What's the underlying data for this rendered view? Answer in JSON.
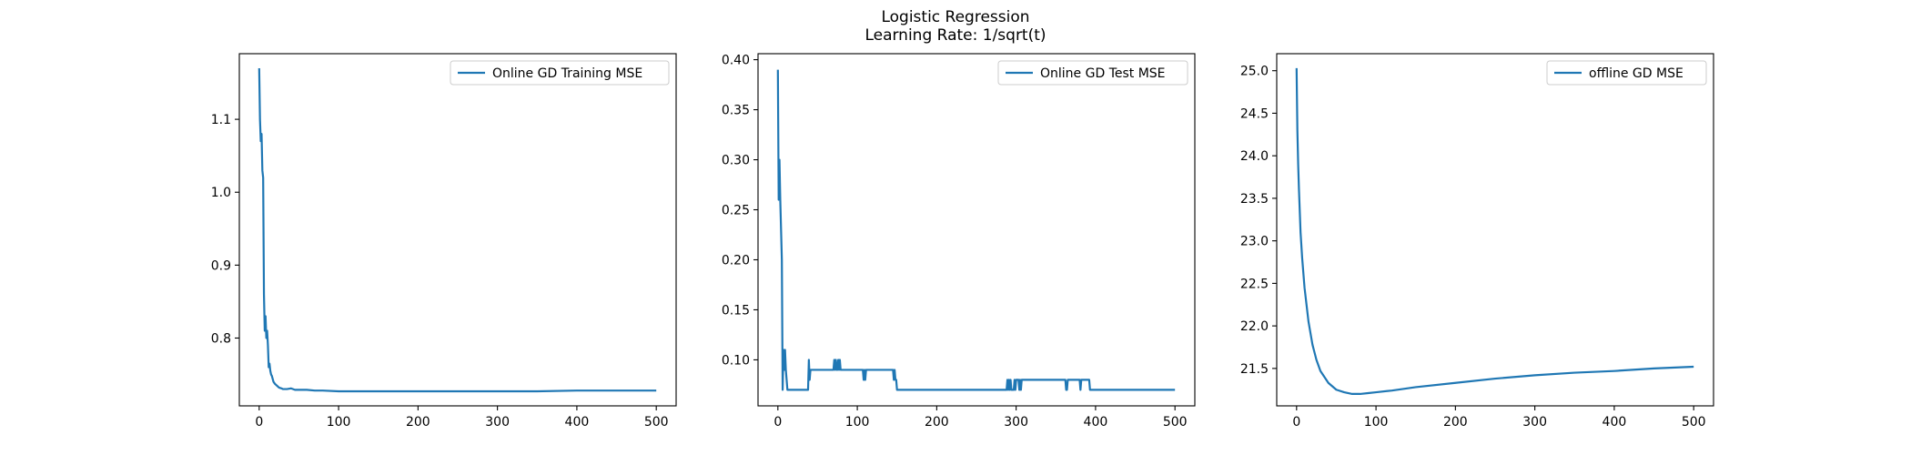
{
  "figure": {
    "title_lines": [
      "Logistic Regression",
      "Learning Rate: 1/sqrt(t)"
    ]
  },
  "chart_data": [
    {
      "type": "line",
      "title": "",
      "xlabel": "",
      "ylabel": "",
      "xlim": [
        -25,
        525
      ],
      "ylim": [
        0.707,
        1.19
      ],
      "xticks": [
        0,
        100,
        200,
        300,
        400,
        500
      ],
      "yticks": [
        0.8,
        0.9,
        1.0,
        1.1
      ],
      "ytick_labels": [
        "0.8",
        "0.9",
        "1.0",
        "1.1"
      ],
      "grid": false,
      "legend": "top-right",
      "series": [
        {
          "name": "Online GD Training MSE",
          "color": "#1f77b4",
          "x": [
            0,
            1,
            2,
            3,
            4,
            5,
            6,
            7,
            8,
            9,
            10,
            11,
            12,
            13,
            14,
            15,
            16,
            18,
            20,
            22,
            25,
            28,
            30,
            35,
            40,
            45,
            50,
            60,
            70,
            80,
            100,
            120,
            150,
            200,
            250,
            300,
            350,
            400,
            450,
            500
          ],
          "y": [
            1.17,
            1.1,
            1.07,
            1.08,
            1.03,
            1.02,
            0.86,
            0.81,
            0.83,
            0.8,
            0.81,
            0.79,
            0.76,
            0.765,
            0.755,
            0.75,
            0.748,
            0.74,
            0.737,
            0.735,
            0.732,
            0.731,
            0.73,
            0.73,
            0.731,
            0.729,
            0.729,
            0.729,
            0.728,
            0.728,
            0.727,
            0.727,
            0.727,
            0.727,
            0.727,
            0.727,
            0.727,
            0.728,
            0.728,
            0.728
          ]
        }
      ]
    },
    {
      "type": "line",
      "title": "",
      "xlabel": "",
      "ylabel": "",
      "xlim": [
        -25,
        525
      ],
      "ylim": [
        0.054,
        0.406
      ],
      "xticks": [
        0,
        100,
        200,
        300,
        400,
        500
      ],
      "yticks": [
        0.1,
        0.15,
        0.2,
        0.25,
        0.3,
        0.35,
        0.4
      ],
      "ytick_labels": [
        "0.10",
        "0.15",
        "0.20",
        "0.25",
        "0.30",
        "0.35",
        "0.40"
      ],
      "grid": false,
      "legend": "top-right",
      "series": [
        {
          "name": "Online GD Test MSE",
          "color": "#1f77b4",
          "x": [
            0,
            1,
            2,
            3,
            4,
            5,
            6,
            7,
            8,
            9,
            10,
            11,
            12,
            14,
            15,
            38,
            39,
            40,
            41,
            42,
            43,
            44,
            70,
            71,
            72,
            73,
            74,
            75,
            76,
            77,
            78,
            79,
            80,
            107,
            108,
            109,
            110,
            111,
            112,
            113,
            145,
            146,
            147,
            148,
            149,
            150,
            151,
            152,
            153,
            288,
            289,
            290,
            291,
            292,
            293,
            294,
            297,
            298,
            299,
            300,
            303,
            304,
            305,
            306,
            307,
            308,
            310,
            311,
            362,
            363,
            364,
            365,
            366,
            367,
            368,
            369,
            380,
            381,
            382,
            383,
            384,
            385,
            386,
            392,
            393,
            394,
            500
          ],
          "y": [
            0.39,
            0.26,
            0.3,
            0.26,
            0.23,
            0.2,
            0.07,
            0.11,
            0.09,
            0.11,
            0.09,
            0.08,
            0.07,
            0.07,
            0.07,
            0.07,
            0.1,
            0.08,
            0.09,
            0.09,
            0.09,
            0.09,
            0.09,
            0.1,
            0.09,
            0.1,
            0.09,
            0.09,
            0.1,
            0.09,
            0.1,
            0.09,
            0.09,
            0.09,
            0.08,
            0.09,
            0.08,
            0.09,
            0.09,
            0.09,
            0.09,
            0.08,
            0.09,
            0.08,
            0.08,
            0.07,
            0.07,
            0.07,
            0.07,
            0.07,
            0.08,
            0.07,
            0.08,
            0.07,
            0.08,
            0.07,
            0.07,
            0.08,
            0.07,
            0.08,
            0.08,
            0.07,
            0.08,
            0.07,
            0.08,
            0.08,
            0.08,
            0.08,
            0.08,
            0.07,
            0.07,
            0.08,
            0.08,
            0.08,
            0.08,
            0.08,
            0.08,
            0.07,
            0.08,
            0.08,
            0.08,
            0.08,
            0.08,
            0.08,
            0.07,
            0.07,
            0.07
          ]
        }
      ]
    },
    {
      "type": "line",
      "title": "",
      "xlabel": "",
      "ylabel": "",
      "xlim": [
        -25,
        525
      ],
      "ylim": [
        21.06,
        25.2
      ],
      "xticks": [
        0,
        100,
        200,
        300,
        400,
        500
      ],
      "yticks": [
        21.5,
        22.0,
        22.5,
        23.0,
        23.5,
        24.0,
        24.5,
        25.0
      ],
      "ytick_labels": [
        "21.5",
        "22.0",
        "22.5",
        "23.0",
        "23.5",
        "24.0",
        "24.5",
        "25.0"
      ],
      "grid": false,
      "legend": "top-right",
      "series": [
        {
          "name": "offline GD MSE",
          "color": "#1f77b4",
          "x": [
            0,
            1,
            2,
            3,
            5,
            7,
            10,
            15,
            20,
            25,
            30,
            40,
            50,
            60,
            70,
            80,
            90,
            100,
            120,
            150,
            200,
            250,
            300,
            350,
            400,
            450,
            500
          ],
          "y": [
            25.03,
            24.3,
            23.9,
            23.6,
            23.1,
            22.8,
            22.45,
            22.05,
            21.78,
            21.6,
            21.47,
            21.33,
            21.25,
            21.22,
            21.2,
            21.2,
            21.21,
            21.22,
            21.24,
            21.28,
            21.33,
            21.38,
            21.42,
            21.45,
            21.47,
            21.5,
            21.52
          ]
        }
      ]
    }
  ]
}
